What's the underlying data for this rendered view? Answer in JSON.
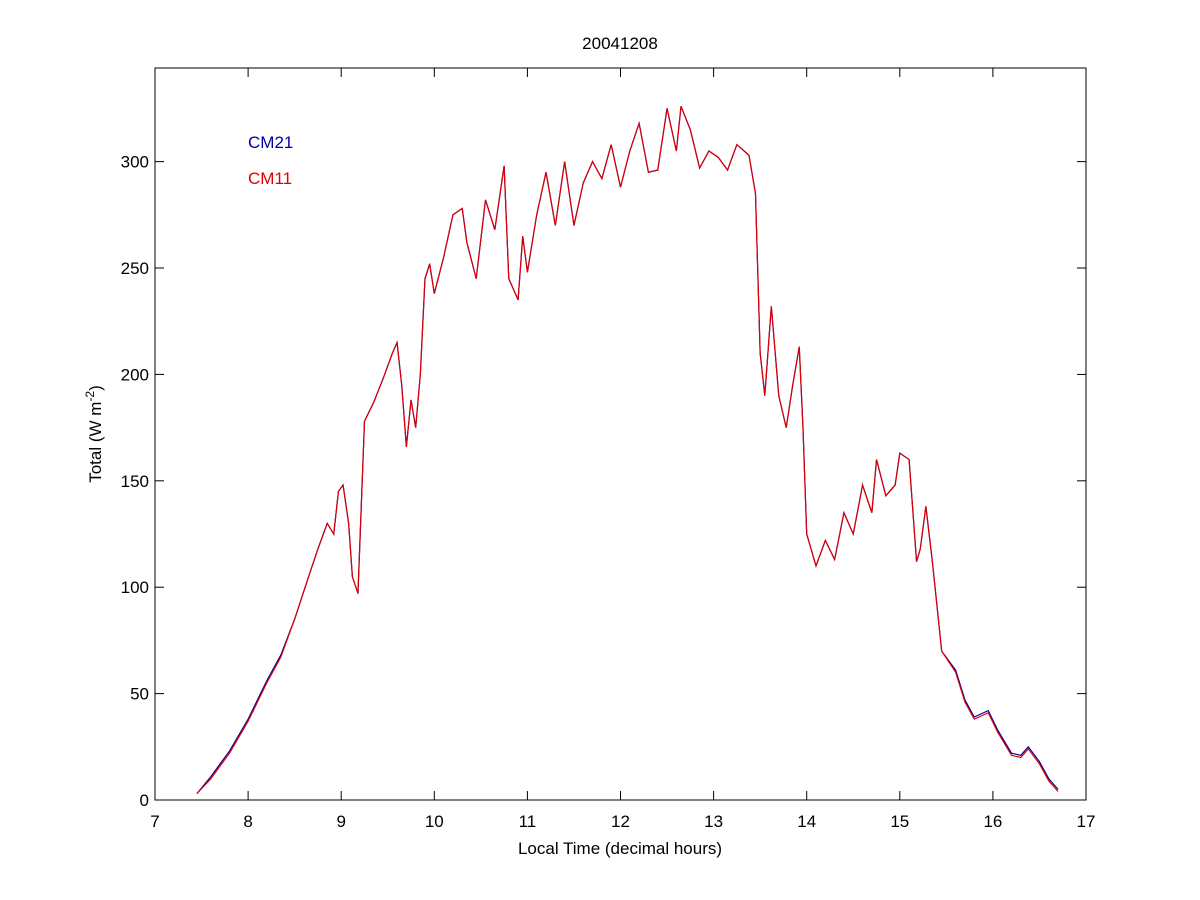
{
  "chart_data": {
    "type": "line",
    "title": "20041208",
    "xlabel": "Local Time (decimal hours)",
    "ylabel": {
      "text": "Total (W m",
      "sup": "-2",
      "end": ")"
    },
    "xlim": [
      7,
      17
    ],
    "xticks": [
      7,
      8,
      9,
      10,
      11,
      12,
      13,
      14,
      15,
      16,
      17
    ],
    "ylim": [
      0,
      344
    ],
    "yticks": [
      0,
      50,
      100,
      150,
      200,
      250,
      300
    ],
    "legend": "upper left",
    "x": [
      7.45,
      7.6,
      7.8,
      8.0,
      8.2,
      8.35,
      8.5,
      8.65,
      8.75,
      8.85,
      8.92,
      8.97,
      9.02,
      9.08,
      9.12,
      9.18,
      9.25,
      9.35,
      9.45,
      9.55,
      9.6,
      9.65,
      9.7,
      9.75,
      9.8,
      9.85,
      9.9,
      9.95,
      10.0,
      10.1,
      10.2,
      10.3,
      10.35,
      10.45,
      10.55,
      10.65,
      10.75,
      10.8,
      10.9,
      10.95,
      11.0,
      11.1,
      11.2,
      11.3,
      11.4,
      11.5,
      11.6,
      11.7,
      11.8,
      11.9,
      12.0,
      12.1,
      12.2,
      12.3,
      12.4,
      12.5,
      12.6,
      12.65,
      12.75,
      12.85,
      12.95,
      13.05,
      13.15,
      13.25,
      13.38,
      13.45,
      13.5,
      13.55,
      13.62,
      13.7,
      13.78,
      13.85,
      13.92,
      13.96,
      14.0,
      14.1,
      14.2,
      14.3,
      14.4,
      14.5,
      14.6,
      14.7,
      14.75,
      14.85,
      14.95,
      15.0,
      15.1,
      15.18,
      15.22,
      15.28,
      15.35,
      15.45,
      15.6,
      15.7,
      15.8,
      15.9,
      15.95,
      16.05,
      16.2,
      16.3,
      16.38,
      16.5,
      16.6,
      16.7
    ],
    "series": [
      {
        "name": "CM21",
        "color": "#0000a0",
        "values": [
          3,
          11,
          23,
          38,
          56,
          68,
          85,
          105,
          118,
          130,
          125,
          145,
          148,
          130,
          105,
          97,
          178,
          187,
          198,
          210,
          215,
          195,
          166,
          188,
          175,
          200,
          245,
          252,
          238,
          255,
          275,
          278,
          262,
          245,
          282,
          268,
          298,
          245,
          235,
          265,
          248,
          275,
          295,
          270,
          300,
          270,
          290,
          300,
          292,
          308,
          288,
          305,
          318,
          295,
          296,
          325,
          305,
          326,
          315,
          297,
          305,
          302,
          296,
          308,
          303,
          285,
          210,
          190,
          232,
          190,
          175,
          195,
          213,
          175,
          125,
          110,
          122,
          113,
          135,
          125,
          148,
          135,
          160,
          143,
          148,
          163,
          160,
          112,
          118,
          138,
          112,
          70,
          61,
          47,
          39,
          41,
          42,
          33,
          22,
          21,
          25,
          18,
          10,
          5
        ]
      },
      {
        "name": "CM11",
        "color": "#dd0000",
        "values": [
          3,
          10,
          22,
          37,
          55,
          67,
          85,
          105,
          118,
          130,
          125,
          145,
          148,
          130,
          105,
          97,
          178,
          187,
          198,
          210,
          215,
          195,
          166,
          188,
          175,
          200,
          245,
          252,
          238,
          255,
          275,
          278,
          262,
          245,
          282,
          268,
          298,
          245,
          235,
          265,
          248,
          275,
          295,
          270,
          300,
          270,
          290,
          300,
          292,
          308,
          288,
          305,
          318,
          295,
          296,
          325,
          305,
          326,
          315,
          297,
          305,
          302,
          296,
          308,
          303,
          285,
          210,
          190,
          232,
          190,
          175,
          195,
          213,
          175,
          125,
          110,
          122,
          113,
          135,
          125,
          148,
          135,
          160,
          143,
          148,
          163,
          160,
          112,
          118,
          138,
          112,
          70,
          60,
          46,
          38,
          40,
          41,
          32,
          21,
          20,
          24,
          17,
          9,
          4
        ]
      }
    ]
  }
}
